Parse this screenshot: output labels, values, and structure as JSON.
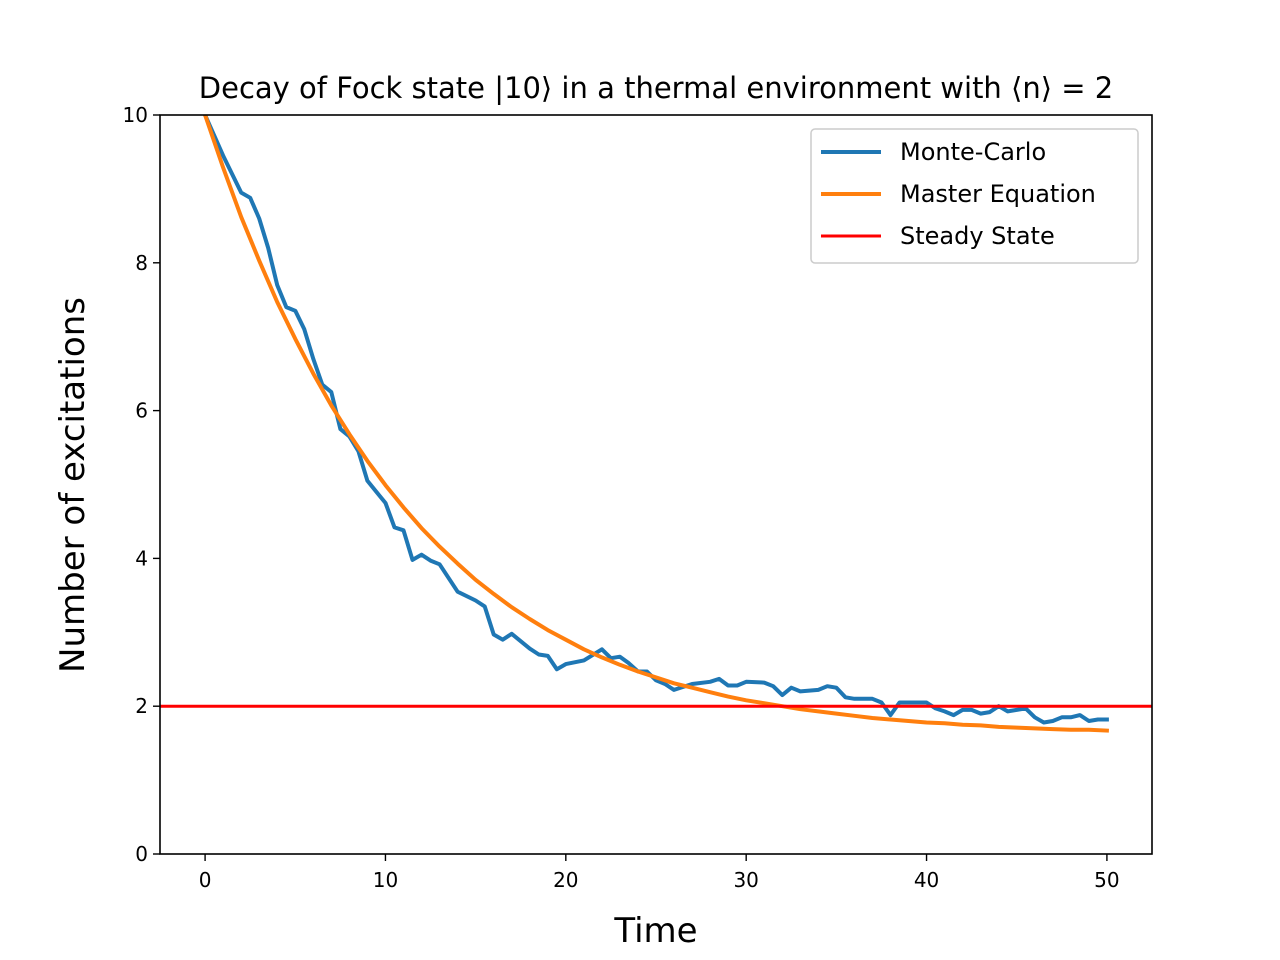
{
  "chart_data": {
    "type": "line",
    "title": "Decay of Fock state |10⟩ in a thermal environment with ⟨n⟩ = 2",
    "xlabel": "Time",
    "ylabel": "Number of excitations",
    "xlim": [
      -2.5,
      52.5
    ],
    "ylim": [
      0,
      10
    ],
    "xticks": [
      0,
      10,
      20,
      30,
      40,
      50
    ],
    "yticks": [
      0,
      2,
      4,
      6,
      8,
      10
    ],
    "grid": false,
    "legend_position": "upper right",
    "series": [
      {
        "name": "Monte-Carlo",
        "color": "#1f77b4",
        "x": [
          0,
          1,
          2,
          2.5,
          3,
          3.5,
          4,
          4.5,
          5,
          5.5,
          6,
          6.5,
          7,
          7.5,
          8,
          8.5,
          9,
          9.5,
          10,
          10.5,
          11,
          11.5,
          12,
          12.5,
          13,
          14,
          15,
          15.5,
          16,
          16.5,
          17,
          18,
          18.5,
          19,
          19.5,
          20,
          21,
          22,
          22.5,
          23,
          23.5,
          24,
          24.5,
          25,
          25.5,
          26,
          27,
          28,
          28.5,
          29,
          29.5,
          30,
          31,
          31.5,
          32,
          32.5,
          33,
          34,
          34.5,
          35,
          35.5,
          36,
          37,
          37.5,
          38,
          38.5,
          39,
          40,
          40.5,
          41,
          41.5,
          42,
          42.5,
          43,
          43.5,
          44,
          44.5,
          45,
          45.5,
          46,
          46.5,
          47,
          47.5,
          48,
          48.5,
          49,
          49.5,
          50
        ],
        "y": [
          10.0,
          9.45,
          8.95,
          8.88,
          8.6,
          8.2,
          7.7,
          7.4,
          7.35,
          7.1,
          6.7,
          6.35,
          6.25,
          5.75,
          5.65,
          5.45,
          5.05,
          4.9,
          4.75,
          4.42,
          4.38,
          3.98,
          4.05,
          3.97,
          3.92,
          3.55,
          3.43,
          3.35,
          2.97,
          2.9,
          2.98,
          2.78,
          2.7,
          2.68,
          2.5,
          2.57,
          2.62,
          2.77,
          2.65,
          2.67,
          2.58,
          2.47,
          2.47,
          2.35,
          2.3,
          2.22,
          2.3,
          2.33,
          2.37,
          2.28,
          2.28,
          2.33,
          2.32,
          2.27,
          2.15,
          2.25,
          2.2,
          2.22,
          2.27,
          2.25,
          2.12,
          2.1,
          2.1,
          2.05,
          1.88,
          2.05,
          2.05,
          2.05,
          1.97,
          1.93,
          1.88,
          1.95,
          1.95,
          1.9,
          1.92,
          2.0,
          1.93,
          1.95,
          1.97,
          1.85,
          1.78,
          1.8,
          1.85,
          1.85,
          1.88,
          1.8,
          1.82,
          1.82
        ]
      },
      {
        "name": "Master Equation",
        "color": "#ff7f0e",
        "x": [
          0,
          1,
          2,
          3,
          4,
          5,
          6,
          7,
          8,
          9,
          10,
          11,
          12,
          13,
          14,
          15,
          16,
          17,
          18,
          19,
          20,
          21,
          22,
          23,
          24,
          25,
          26,
          27,
          28,
          29,
          30,
          31,
          32,
          33,
          34,
          35,
          36,
          37,
          38,
          39,
          40,
          41,
          42,
          43,
          44,
          45,
          46,
          47,
          48,
          49,
          50
        ],
        "y": [
          10.0,
          9.29,
          8.62,
          8.03,
          7.47,
          6.97,
          6.5,
          6.07,
          5.68,
          5.32,
          4.99,
          4.69,
          4.41,
          4.16,
          3.93,
          3.71,
          3.52,
          3.34,
          3.18,
          3.03,
          2.9,
          2.77,
          2.66,
          2.56,
          2.47,
          2.39,
          2.31,
          2.25,
          2.19,
          2.13,
          2.08,
          2.04,
          2.0,
          1.96,
          1.93,
          1.9,
          1.87,
          1.84,
          1.82,
          1.8,
          1.78,
          1.77,
          1.75,
          1.74,
          1.72,
          1.71,
          1.7,
          1.69,
          1.68,
          1.68,
          1.67
        ]
      },
      {
        "name": "Steady State",
        "color": "#ff0000",
        "y_constant": 2
      }
    ]
  }
}
